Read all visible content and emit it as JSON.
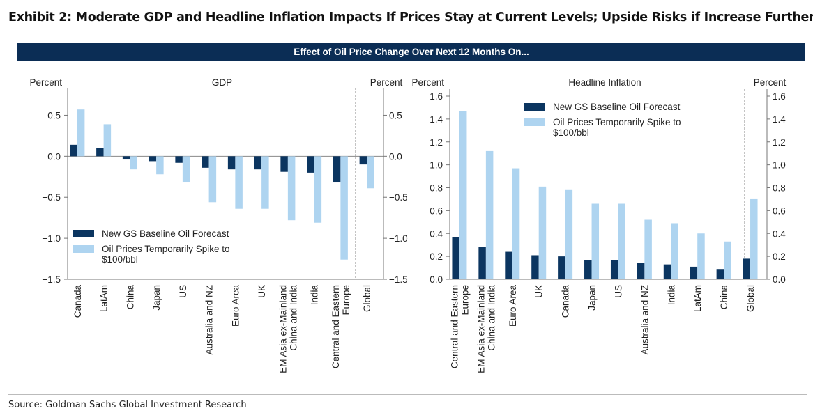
{
  "title": "Exhibit 2: Moderate GDP and Headline Inflation Impacts If Prices Stay at Current Levels; Upside Risks if Increase Further",
  "banner": "Effect of Oil Price Change Over Next 12 Months On...",
  "source": "Source: Goldman Sachs Global Investment Research",
  "colors": {
    "baseline": "#0b3560",
    "spike": "#aed4f0",
    "banner": "#0b2d55"
  },
  "chart_data": [
    {
      "type": "bar",
      "title": "GDP",
      "ylabel_left": "Percent",
      "ylabel_right": "Percent",
      "ylim": [
        -1.5,
        0.75
      ],
      "yticks": [
        -1.5,
        -1.0,
        -0.5,
        0.0,
        0.5
      ],
      "legend_position": "bottom-left",
      "categories": [
        "Canada",
        "LatAm",
        "China",
        "Japan",
        "US",
        "Australia and NZ",
        "Euro Area",
        "UK",
        "EM Asia ex-Mainland\nChina and India",
        "India",
        "Central and Eastern\nEurope",
        "Global"
      ],
      "series": [
        {
          "name": "New GS Baseline Oil Forecast",
          "values": [
            0.14,
            0.1,
            -0.04,
            -0.06,
            -0.08,
            -0.14,
            -0.16,
            -0.16,
            -0.19,
            -0.2,
            -0.32,
            -0.1
          ]
        },
        {
          "name": "Oil Prices Temporarily Spike to\n$100/bbl",
          "values": [
            0.57,
            0.39,
            -0.16,
            -0.22,
            -0.32,
            -0.56,
            -0.64,
            -0.64,
            -0.78,
            -0.81,
            -1.26,
            -0.39
          ]
        }
      ]
    },
    {
      "type": "bar",
      "title": "Headline Inflation",
      "ylabel_left": "Percent",
      "ylabel_right": "Percent",
      "ylim": [
        0,
        1.6
      ],
      "yticks": [
        0.0,
        0.2,
        0.4,
        0.6,
        0.8,
        1.0,
        1.2,
        1.4,
        1.6
      ],
      "legend_position": "top",
      "categories": [
        "Central and Eastern\nEurope",
        "EM Asia ex-Mainland\nChina and India",
        "Euro Area",
        "UK",
        "Canada",
        "Japan",
        "US",
        "Australia and NZ",
        "India",
        "LatAm",
        "China",
        "Global"
      ],
      "series": [
        {
          "name": "New GS Baseline Oil Forecast",
          "values": [
            0.37,
            0.28,
            0.24,
            0.21,
            0.2,
            0.17,
            0.17,
            0.14,
            0.13,
            0.11,
            0.09,
            0.18
          ]
        },
        {
          "name": "Oil Prices Temporarily Spike to\n$100/bbl",
          "values": [
            1.47,
            1.12,
            0.97,
            0.81,
            0.78,
            0.66,
            0.66,
            0.52,
            0.49,
            0.4,
            0.33,
            0.7
          ]
        }
      ]
    }
  ]
}
